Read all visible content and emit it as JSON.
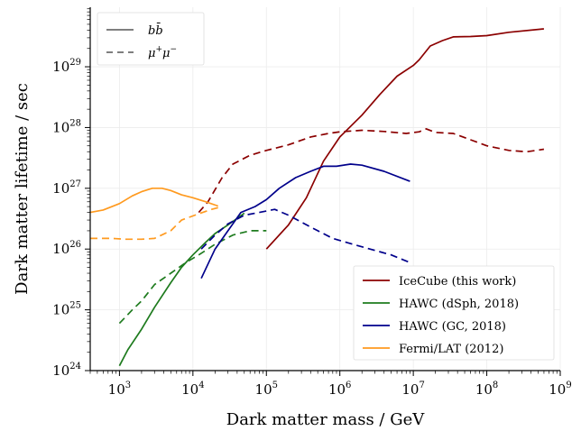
{
  "chart_data": {
    "type": "line",
    "title": "",
    "xlabel": "Dark matter mass / GeV",
    "ylabel": "Dark matter lifetime / sec",
    "xscale": "log",
    "yscale": "log",
    "xlim": [
      400,
      1000000000
    ],
    "ylim": [
      1e+24,
      1e+30
    ],
    "grid": true,
    "x_ticks": [
      {
        "base": "10",
        "exp": "3"
      },
      {
        "base": "10",
        "exp": "4"
      },
      {
        "base": "10",
        "exp": "5"
      },
      {
        "base": "10",
        "exp": "6"
      },
      {
        "base": "10",
        "exp": "7"
      },
      {
        "base": "10",
        "exp": "8"
      },
      {
        "base": "10",
        "exp": "9"
      }
    ],
    "y_ticks": [
      {
        "base": "10",
        "exp": "24"
      },
      {
        "base": "10",
        "exp": "25"
      },
      {
        "base": "10",
        "exp": "26"
      },
      {
        "base": "10",
        "exp": "27"
      },
      {
        "base": "10",
        "exp": "28"
      },
      {
        "base": "10",
        "exp": "29"
      }
    ],
    "linestyle_legend": {
      "placement": "top-left",
      "items": [
        {
          "style": "solid",
          "label_main": "b",
          "label_tail": "b̄",
          "text": "bb̄"
        },
        {
          "style": "dashed",
          "label_main": "μ",
          "label_sup1": "+",
          "label_mid": "μ",
          "label_sup2": "−",
          "text": "μ+μ−"
        }
      ]
    },
    "color_legend": {
      "placement": "bottom-right",
      "items": [
        {
          "label": "IceCube (this work)",
          "color": "#8b0000"
        },
        {
          "label": "HAWC (dSph, 2018)",
          "color": "#1e7b1e"
        },
        {
          "label": "HAWC (GC, 2018)",
          "color": "#00008b"
        },
        {
          "label": "Fermi/LAT (2012)",
          "color": "#ff9a1f"
        }
      ]
    },
    "series": [
      {
        "experiment": "IceCube (this work)",
        "channel": "bb",
        "style": "solid",
        "color": "#8b0000",
        "points": [
          [
            100000,
            1e+26
          ],
          [
            200000,
            2.5e+26
          ],
          [
            350000,
            7e+26
          ],
          [
            600000,
            2.8e+27
          ],
          [
            1000000,
            7e+27
          ],
          [
            2000000,
            1.6e+28
          ],
          [
            3500000,
            3.5e+28
          ],
          [
            6000000,
            7e+28
          ],
          [
            10000000,
            1.05e+29
          ],
          [
            12000000,
            1.3e+29
          ],
          [
            17000000,
            2.2e+29
          ],
          [
            25000000,
            2.7e+29
          ],
          [
            35000000,
            3.1e+29
          ],
          [
            60000000,
            3.15e+29
          ],
          [
            100000000,
            3.25e+29
          ],
          [
            200000000,
            3.7e+29
          ],
          [
            600000000,
            4.2e+29
          ]
        ]
      },
      {
        "experiment": "IceCube (this work)",
        "channel": "mumu",
        "style": "dashed",
        "color": "#8b0000",
        "points": [
          [
            12000,
            4e+26
          ],
          [
            16000,
            6e+26
          ],
          [
            25000,
            1.5e+27
          ],
          [
            35000,
            2.5e+27
          ],
          [
            60000,
            3.5e+27
          ],
          [
            100000,
            4.2e+27
          ],
          [
            200000,
            5.2e+27
          ],
          [
            400000,
            7e+27
          ],
          [
            700000,
            8e+27
          ],
          [
            1000000,
            8.5e+27
          ],
          [
            2000000,
            9e+27
          ],
          [
            4000000,
            8.6e+27
          ],
          [
            8000000,
            8e+27
          ],
          [
            12000000,
            8.5e+27
          ],
          [
            15000000,
            9.5e+27
          ],
          [
            20000000,
            8.3e+27
          ],
          [
            35000000,
            8e+27
          ],
          [
            60000000,
            6.3e+27
          ],
          [
            100000000,
            5e+27
          ],
          [
            200000000,
            4.2e+27
          ],
          [
            350000000,
            4e+27
          ],
          [
            600000000,
            4.4e+27
          ]
        ]
      },
      {
        "experiment": "HAWC (dSph, 2018)",
        "channel": "bb",
        "style": "solid",
        "color": "#1e7b1e",
        "points": [
          [
            1000,
            1.2e+24
          ],
          [
            1300,
            2.2e+24
          ],
          [
            2000,
            4.8e+24
          ],
          [
            3000,
            1.1e+25
          ],
          [
            5000,
            2.8e+25
          ],
          [
            7000,
            5e+25
          ],
          [
            10000,
            8e+25
          ],
          [
            15000,
            1.3e+26
          ],
          [
            20000,
            1.8e+26
          ],
          [
            30000,
            2.5e+26
          ],
          [
            40000,
            3.2e+26
          ],
          [
            50000,
            3.9e+26
          ]
        ]
      },
      {
        "experiment": "HAWC (dSph, 2018)",
        "channel": "mumu",
        "style": "dashed",
        "color": "#1e7b1e",
        "points": [
          [
            1000,
            6e+24
          ],
          [
            1500,
            1e+25
          ],
          [
            2000,
            1.4e+25
          ],
          [
            3000,
            2.6e+25
          ],
          [
            5000,
            4e+25
          ],
          [
            8000,
            6e+25
          ],
          [
            12000,
            8e+25
          ],
          [
            20000,
            1.2e+26
          ],
          [
            35000,
            1.7e+26
          ],
          [
            60000,
            2e+26
          ],
          [
            100000,
            2e+26
          ]
        ]
      },
      {
        "experiment": "HAWC (GC, 2018)",
        "channel": "bb",
        "style": "solid",
        "color": "#00008b",
        "points": [
          [
            13000,
            3.3e+25
          ],
          [
            20000,
            1e+26
          ],
          [
            30000,
            2e+26
          ],
          [
            45000,
            4e+26
          ],
          [
            70000,
            5e+26
          ],
          [
            100000,
            6.5e+26
          ],
          [
            150000,
            1e+27
          ],
          [
            250000,
            1.5e+27
          ],
          [
            400000,
            1.9e+27
          ],
          [
            600000,
            2.3e+27
          ],
          [
            900000,
            2.3e+27
          ],
          [
            1400000,
            2.5e+27
          ],
          [
            2000000,
            2.4e+27
          ],
          [
            4000000,
            1.9e+27
          ],
          [
            9000000,
            1.3e+27
          ]
        ]
      },
      {
        "experiment": "HAWC (GC, 2018)",
        "channel": "mumu",
        "style": "dashed",
        "color": "#00008b",
        "points": [
          [
            13000,
            1e+26
          ],
          [
            20000,
            1.7e+26
          ],
          [
            30000,
            2.6e+26
          ],
          [
            50000,
            3.6e+26
          ],
          [
            80000,
            4e+26
          ],
          [
            130000,
            4.5e+26
          ],
          [
            200000,
            3.6e+26
          ],
          [
            400000,
            2.3e+26
          ],
          [
            800000,
            1.5e+26
          ],
          [
            1500000,
            1.2e+26
          ],
          [
            3000000,
            9.5e+25
          ],
          [
            5000000,
            8e+25
          ],
          [
            9000000,
            6e+25
          ]
        ]
      },
      {
        "experiment": "Fermi/LAT (2012)",
        "channel": "bb",
        "style": "solid",
        "color": "#ff9a1f",
        "points": [
          [
            400,
            4e+26
          ],
          [
            600,
            4.4e+26
          ],
          [
            1000,
            5.6e+26
          ],
          [
            1500,
            7.5e+26
          ],
          [
            2000,
            8.8e+26
          ],
          [
            2800,
            1e+27
          ],
          [
            3800,
            1e+27
          ],
          [
            5000,
            9.2e+26
          ],
          [
            7000,
            7.8e+26
          ],
          [
            10000,
            7e+26
          ],
          [
            15000,
            6e+26
          ],
          [
            22000,
            5.1e+26
          ]
        ]
      },
      {
        "experiment": "Fermi/LAT (2012)",
        "channel": "mumu",
        "style": "dashed",
        "color": "#ff9a1f",
        "points": [
          [
            400,
            1.5e+26
          ],
          [
            800,
            1.5e+26
          ],
          [
            1200,
            1.45e+26
          ],
          [
            2000,
            1.45e+26
          ],
          [
            3000,
            1.5e+26
          ],
          [
            5000,
            2e+26
          ],
          [
            7000,
            3e+26
          ],
          [
            12000,
            3.8e+26
          ],
          [
            18000,
            4.5e+26
          ],
          [
            22000,
            4.8e+26
          ]
        ]
      }
    ]
  }
}
